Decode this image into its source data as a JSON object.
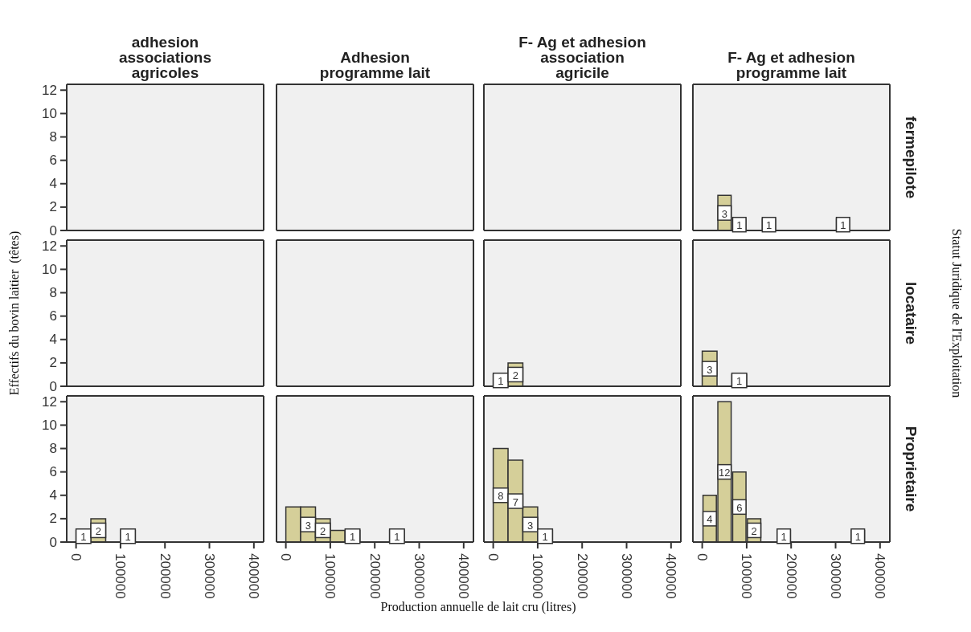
{
  "chart_data": [
    {
      "type": "histogram",
      "title": "adhesion\nassociations\nagricoles",
      "xlim": [
        -21000,
        422000
      ],
      "xticks": [
        0,
        100000,
        200000,
        300000,
        400000
      ],
      "ylim": [
        0,
        12.5
      ],
      "yticks": [
        0,
        2,
        4,
        6,
        8,
        10,
        12
      ],
      "tick_labels": "y"
    },
    {
      "type": "histogram",
      "title": "Adhesion\nprogramme lait",
      "xlim": [
        -21000,
        422000
      ],
      "xticks": [
        0,
        100000,
        200000,
        300000,
        400000
      ],
      "ylim": [
        0,
        12.5
      ],
      "yticks": [
        0,
        2,
        4,
        6,
        8,
        10,
        12
      ],
      "tick_labels": false
    },
    {
      "type": "histogram",
      "title": "F- Ag et adhesion\nassociation\nagricile",
      "xlim": [
        -21000,
        422000
      ],
      "xticks": [
        0,
        100000,
        200000,
        300000,
        400000
      ],
      "ylim": [
        0,
        12.5
      ],
      "yticks": [
        0,
        2,
        4,
        6,
        8,
        10,
        12
      ],
      "tick_labels": false
    },
    {
      "type": "histogram",
      "title": "F- Ag et adhesion\nprogramme lait",
      "y2label": "fermepilote",
      "bins": [
        0,
        33333,
        66667,
        100000,
        133333,
        166667,
        200000,
        233333,
        266667,
        300000,
        333333,
        366667
      ],
      "values": [
        null,
        3,
        1,
        null,
        1,
        null,
        null,
        null,
        null,
        1,
        null
      ],
      "value_labels": [
        null,
        "3",
        "1",
        null,
        "1",
        null,
        null,
        null,
        null,
        "1",
        null
      ],
      "color": "#d5cf99",
      "xlim": [
        -21000,
        422000
      ],
      "xticks": [
        0,
        100000,
        200000,
        300000,
        400000
      ],
      "ylim": [
        0,
        12.5
      ],
      "yticks": [
        0,
        2,
        4,
        6,
        8,
        10,
        12
      ],
      "tick_labels": false
    },
    {
      "type": "histogram",
      "xlim": [
        -21000,
        422000
      ],
      "xticks": [
        0,
        100000,
        200000,
        300000,
        400000
      ],
      "ylim": [
        0,
        12.5
      ],
      "yticks": [
        0,
        2,
        4,
        6,
        8,
        10,
        12
      ],
      "tick_labels": "y"
    },
    {
      "type": "histogram",
      "xlim": [
        -21000,
        422000
      ],
      "xticks": [
        0,
        100000,
        200000,
        300000,
        400000
      ],
      "ylim": [
        0,
        12.5
      ],
      "yticks": [
        0,
        2,
        4,
        6,
        8,
        10,
        12
      ],
      "tick_labels": false
    },
    {
      "type": "histogram",
      "bins": [
        0,
        33333,
        66667
      ],
      "values": [
        1,
        2
      ],
      "value_labels": [
        "1",
        "2"
      ],
      "color": "#d5cf99",
      "xlim": [
        -21000,
        422000
      ],
      "xticks": [
        0,
        100000,
        200000,
        300000,
        400000
      ],
      "ylim": [
        0,
        12.5
      ],
      "yticks": [
        0,
        2,
        4,
        6,
        8,
        10,
        12
      ],
      "tick_labels": false
    },
    {
      "type": "histogram",
      "y2label": "locataire",
      "bins": [
        0,
        33333,
        66667,
        100000
      ],
      "values": [
        3,
        null,
        1
      ],
      "value_labels": [
        "3",
        null,
        "1"
      ],
      "color": "#d5cf99",
      "xlim": [
        -21000,
        422000
      ],
      "xticks": [
        0,
        100000,
        200000,
        300000,
        400000
      ],
      "ylim": [
        0,
        12.5
      ],
      "yticks": [
        0,
        2,
        4,
        6,
        8,
        10,
        12
      ],
      "tick_labels": false
    },
    {
      "type": "histogram",
      "bins": [
        0,
        33333,
        66667,
        100000,
        133333
      ],
      "values": [
        1,
        2,
        null,
        1
      ],
      "value_labels": [
        "1",
        "2",
        null,
        "1"
      ],
      "color": "#d5cf99",
      "xlim": [
        -21000,
        422000
      ],
      "xticks": [
        0,
        100000,
        200000,
        300000,
        400000
      ],
      "ylim": [
        0,
        12.5
      ],
      "yticks": [
        0,
        2,
        4,
        6,
        8,
        10,
        12
      ]
    },
    {
      "type": "histogram",
      "bins": [
        0,
        33333,
        66667,
        100000,
        133333,
        166667,
        200000,
        233333,
        266667
      ],
      "values": [
        3,
        3,
        2,
        1,
        1,
        null,
        null,
        1
      ],
      "value_labels": [
        null,
        "3",
        "2",
        null,
        "1",
        null,
        null,
        "1"
      ],
      "color": "#d5cf99",
      "xlim": [
        -21000,
        422000
      ],
      "xticks": [
        0,
        100000,
        200000,
        300000,
        400000
      ],
      "ylim": [
        0,
        12.5
      ],
      "yticks": [
        0,
        2,
        4,
        6,
        8,
        10,
        12
      ],
      "tick_labels": "x"
    },
    {
      "type": "histogram",
      "bins": [
        0,
        33333,
        66667,
        100000,
        133333
      ],
      "values": [
        8,
        7,
        3,
        1
      ],
      "value_labels": [
        "8",
        "7",
        "3",
        "1"
      ],
      "color": "#d5cf99",
      "xlim": [
        -21000,
        422000
      ],
      "xticks": [
        0,
        100000,
        200000,
        300000,
        400000
      ],
      "ylim": [
        0,
        12.5
      ],
      "yticks": [
        0,
        2,
        4,
        6,
        8,
        10,
        12
      ],
      "tick_labels": "x"
    },
    {
      "type": "histogram",
      "y2label": "Proprietaire",
      "bins": [
        0,
        33333,
        66667,
        100000,
        133333,
        166667,
        200000,
        233333,
        266667,
        300000,
        333333,
        366667
      ],
      "values": [
        4,
        12,
        6,
        2,
        null,
        1,
        null,
        null,
        null,
        null,
        1
      ],
      "value_labels": [
        "4",
        "12",
        "6",
        "2",
        null,
        "1",
        null,
        null,
        null,
        null,
        "1"
      ],
      "color": "#d5cf99",
      "xlim": [
        -21000,
        422000
      ],
      "xticks": [
        0,
        100000,
        200000,
        300000,
        400000
      ],
      "ylim": [
        0,
        12.5
      ],
      "yticks": [
        0,
        2,
        4,
        6,
        8,
        10,
        12
      ],
      "tick_labels": "x"
    },
    {
      "type": "other",
      "xlabel": "Production annuelle de lait cru (litres)",
      "ylabel": "Effectifs du bovin laitier  (têtes)",
      "y2label": "Statut Juridique de l'Exploitation"
    }
  ]
}
